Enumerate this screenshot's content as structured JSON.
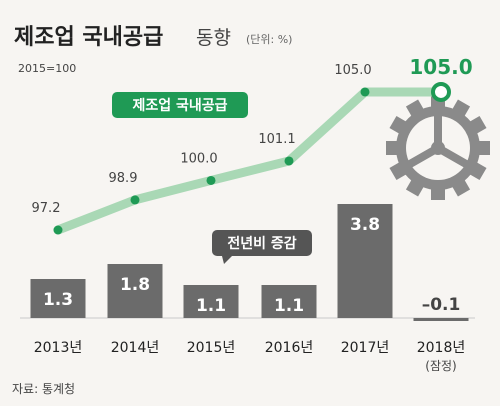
{
  "title": "제조업 국내공급",
  "subtitle": "동향",
  "unit": "(단위: %)",
  "index_base": "2015=100",
  "line_label": "제조업 국내공급",
  "bar_label": "전년비 증감",
  "source": "자료: 통계청",
  "colors": {
    "line": "#a9d8b5",
    "point": "#1f9a55",
    "bar": "#6b6b6b",
    "badge_green": "#1f9a55",
    "badge_dark": "#555555"
  },
  "chart_data": {
    "type": "bar",
    "categories": [
      "2013년",
      "2014년",
      "2015년",
      "2016년",
      "2017년",
      "2018년"
    ],
    "category_notes": [
      "",
      "",
      "",
      "",
      "",
      "(잠정)"
    ],
    "series": [
      {
        "name": "제조업 국내공급",
        "type": "line",
        "values": [
          97.2,
          98.9,
          100.0,
          101.1,
          105.0,
          105.0
        ],
        "labels": [
          "97.2",
          "98.9",
          "100.0",
          "101.1",
          "105.0",
          "105.0"
        ]
      },
      {
        "name": "전년비 증감",
        "type": "bar",
        "values": [
          1.3,
          1.8,
          1.1,
          1.1,
          3.8,
          -0.1
        ],
        "labels": [
          "1.3",
          "1.8",
          "1.1",
          "1.1",
          "3.8",
          "–0.1"
        ]
      }
    ]
  }
}
